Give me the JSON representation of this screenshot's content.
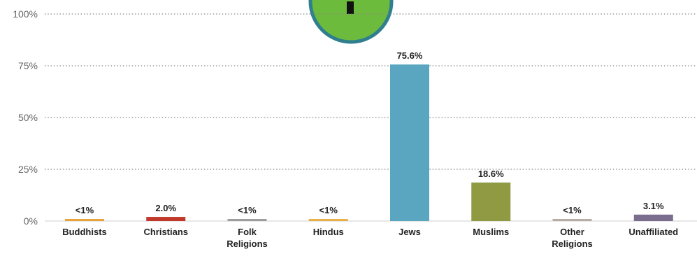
{
  "chart_data": {
    "type": "bar",
    "categories": [
      [
        "Buddhists"
      ],
      [
        "Christians"
      ],
      [
        "Folk",
        "Religions"
      ],
      [
        "Hindus"
      ],
      [
        "Jews"
      ],
      [
        "Muslims"
      ],
      [
        "Other",
        "Religions"
      ],
      [
        "Unaffiliated"
      ]
    ],
    "values": [
      0.5,
      2.0,
      0.5,
      0.5,
      75.6,
      18.6,
      0.5,
      3.1
    ],
    "data_labels": [
      "<1%",
      "2.0%",
      "<1%",
      "<1%",
      "75.6%",
      "18.6%",
      "<1%",
      "3.1%"
    ],
    "colors": [
      "#e8a33d",
      "#c0392b",
      "#9e9e9e",
      "#e8b04a",
      "#5aa6c0",
      "#8f9a42",
      "#b8aca6",
      "#7b6d8d"
    ],
    "ylim": [
      0,
      100
    ],
    "yticks": [
      "0%",
      "25%",
      "50%",
      "75%",
      "100%"
    ],
    "grid": true,
    "legend": false
  },
  "badge_colors": {
    "fill": "#6dbb3c",
    "stroke": "#2f7f8f"
  }
}
